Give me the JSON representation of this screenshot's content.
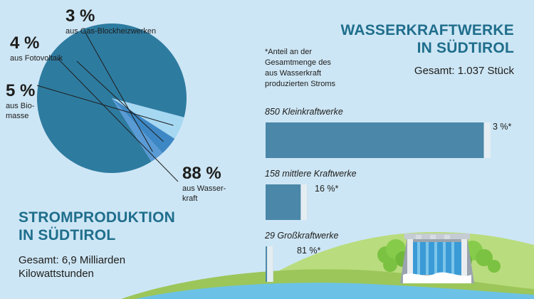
{
  "chart_data": [
    {
      "type": "pie",
      "title": "STROMPRODUKTION IN SÜDTIROL",
      "title_lines": [
        "STROMPRODUKTION",
        "IN SÜDTIROL"
      ],
      "subtitle_lines": [
        "Gesamt: 6,9 Milliarden",
        "Kilowattstunden"
      ],
      "slices": [
        {
          "pct_label": "88 %",
          "desc_lines": [
            "aus Wasser-",
            "kraft"
          ],
          "value": 88,
          "color": "#2e7ba0"
        },
        {
          "pct_label": "5 %",
          "desc_lines": [
            "aus Bio-",
            "masse"
          ],
          "value": 5,
          "color": "#a6d8f2"
        },
        {
          "pct_label": "4 %",
          "desc_lines": [
            "aus Fotovoltaik"
          ],
          "value": 4,
          "color": "#3d88c4"
        },
        {
          "pct_label": "3 %",
          "desc_lines": [
            "aus Gas-Blockheizwerken"
          ],
          "value": 3,
          "color": "#5a9bd6"
        }
      ]
    },
    {
      "type": "bar",
      "title_lines": [
        "WASSERKRAFTWERKE",
        "IN SÜDTIROL"
      ],
      "subtitle": "Gesamt: 1.037 Stück",
      "note_lines": [
        "*Anteil an der",
        "Gesamtmenge des",
        "aus Wasserkraft",
        "produzierten Stroms"
      ],
      "bars": [
        {
          "category": "850 Kleinkraftwerke",
          "count": 850,
          "value_label": "3 %*",
          "share": 3
        },
        {
          "category": "158 mittlere Kraftwerke",
          "count": 158,
          "value_label": "16 %*",
          "share": 16
        },
        {
          "category": "29 Großkraftwerke",
          "count": 29,
          "value_label": "81 %*",
          "share": 81
        }
      ],
      "colors": {
        "bar": "#4a87a8",
        "share_fill": "#ffffff"
      }
    }
  ],
  "colors": {
    "background": "#cde6f5",
    "heading": "#1f6e8c",
    "hill_light": "#b9dc7e",
    "hill_dark": "#9cc65a",
    "tree": "#7cc242",
    "water": "#6cc2e6"
  }
}
